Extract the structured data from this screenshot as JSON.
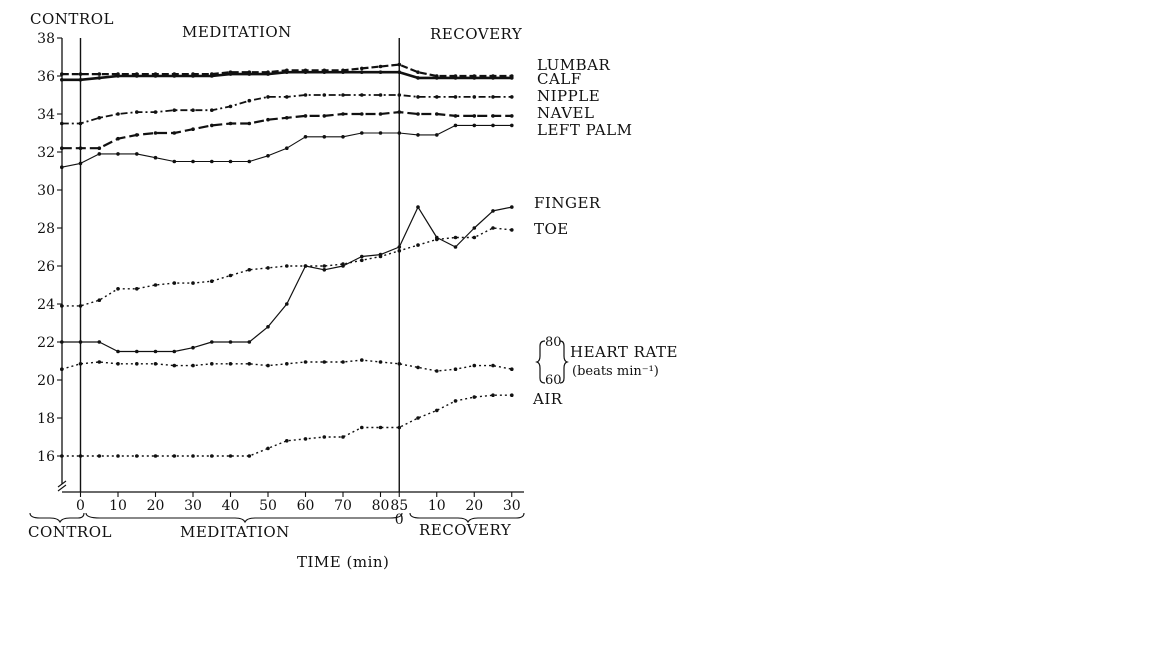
{
  "chart_data": {
    "type": "line",
    "phase_labels_top": [
      "CONTROL",
      "MEDITATION",
      "RECOVERY"
    ],
    "phase_labels_bottom": [
      "CONTROL",
      "MEDITATION",
      "RECOVERY"
    ],
    "xlabel": "TIME (min)",
    "x_tick_labels": [
      "0",
      "10",
      "20",
      "30",
      "40",
      "50",
      "60",
      "70",
      "80",
      "85",
      "10",
      "20",
      "30"
    ],
    "recovery_zero_label": "0",
    "y_ticks": [
      16,
      18,
      20,
      22,
      24,
      26,
      28,
      30,
      32,
      34,
      36,
      38
    ],
    "ylim": [
      15,
      38
    ],
    "x_axis_note": "time axis: control phase, meditation 0–85 min, recovery 0–30 min (recovery minutes continue after 85)",
    "heart_rate_scale": {
      "top": "80",
      "bottom": "60"
    },
    "series": [
      {
        "name": "LUMBAR",
        "style": "dashed",
        "x": [
          -5,
          0,
          5,
          10,
          15,
          20,
          25,
          30,
          35,
          40,
          45,
          50,
          55,
          60,
          65,
          70,
          75,
          80,
          85,
          90,
          95,
          100,
          105,
          110,
          115
        ],
        "values": [
          36.1,
          36.1,
          36.1,
          36.1,
          36.1,
          36.1,
          36.1,
          36.1,
          36.1,
          36.2,
          36.2,
          36.2,
          36.3,
          36.3,
          36.3,
          36.3,
          36.4,
          36.5,
          36.6,
          36.2,
          36.0,
          36.0,
          36.0,
          36.0,
          36.0
        ]
      },
      {
        "name": "CALF",
        "style": "solid-thick",
        "x": [
          -5,
          0,
          5,
          10,
          15,
          20,
          25,
          30,
          35,
          40,
          45,
          50,
          55,
          60,
          65,
          70,
          75,
          80,
          85,
          90,
          95,
          100,
          105,
          110,
          115
        ],
        "values": [
          35.8,
          35.8,
          35.9,
          36.0,
          36.0,
          36.0,
          36.0,
          36.0,
          36.0,
          36.1,
          36.1,
          36.1,
          36.2,
          36.2,
          36.2,
          36.2,
          36.2,
          36.2,
          36.2,
          35.9,
          35.9,
          35.9,
          35.9,
          35.9,
          35.9
        ]
      },
      {
        "name": "NIPPLE",
        "style": "dash-dot",
        "x": [
          -5,
          0,
          5,
          10,
          15,
          20,
          25,
          30,
          35,
          40,
          45,
          50,
          55,
          60,
          65,
          70,
          75,
          80,
          85,
          90,
          95,
          100,
          105,
          110,
          115
        ],
        "values": [
          33.5,
          33.5,
          33.8,
          34.0,
          34.1,
          34.1,
          34.2,
          34.2,
          34.2,
          34.4,
          34.7,
          34.9,
          34.9,
          35.0,
          35.0,
          35.0,
          35.0,
          35.0,
          35.0,
          34.9,
          34.9,
          34.9,
          34.9,
          34.9,
          34.9
        ]
      },
      {
        "name": "NAVEL",
        "style": "long-dash",
        "x": [
          -5,
          0,
          5,
          10,
          15,
          20,
          25,
          30,
          35,
          40,
          45,
          50,
          55,
          60,
          65,
          70,
          75,
          80,
          85,
          90,
          95,
          100,
          105,
          110,
          115
        ],
        "values": [
          32.2,
          32.2,
          32.2,
          32.7,
          32.9,
          33.0,
          33.0,
          33.2,
          33.4,
          33.5,
          33.5,
          33.7,
          33.8,
          33.9,
          33.9,
          34.0,
          34.0,
          34.0,
          34.1,
          34.0,
          34.0,
          33.9,
          33.9,
          33.9,
          33.9
        ]
      },
      {
        "name": "LEFT PALM",
        "style": "thin",
        "x": [
          -5,
          0,
          5,
          10,
          15,
          20,
          25,
          30,
          35,
          40,
          45,
          50,
          55,
          60,
          65,
          70,
          75,
          80,
          85,
          90,
          95,
          100,
          105,
          110,
          115
        ],
        "values": [
          31.2,
          31.4,
          31.9,
          31.9,
          31.9,
          31.7,
          31.5,
          31.5,
          31.5,
          31.5,
          31.5,
          31.8,
          32.2,
          32.8,
          32.8,
          32.8,
          33.0,
          33.0,
          33.0,
          32.9,
          32.9,
          33.4,
          33.4,
          33.4,
          33.4
        ]
      },
      {
        "name": "FINGER",
        "style": "solid",
        "x": [
          -5,
          0,
          5,
          10,
          15,
          20,
          25,
          30,
          35,
          40,
          45,
          50,
          55,
          60,
          65,
          70,
          75,
          80,
          85,
          90,
          95,
          100,
          105,
          110,
          115
        ],
        "values": [
          22.0,
          22.0,
          22.0,
          21.5,
          21.5,
          21.5,
          21.5,
          21.7,
          22.0,
          22.0,
          22.0,
          22.8,
          24.0,
          26.0,
          25.8,
          26.0,
          26.5,
          26.6,
          27.0,
          29.1,
          27.5,
          27.0,
          28.0,
          28.9,
          29.1
        ]
      },
      {
        "name": "TOE",
        "style": "dotted",
        "x": [
          -5,
          0,
          5,
          10,
          15,
          20,
          25,
          30,
          35,
          40,
          45,
          50,
          55,
          60,
          65,
          70,
          75,
          80,
          85,
          90,
          95,
          100,
          105,
          110,
          115
        ],
        "values": [
          23.9,
          23.9,
          24.2,
          24.8,
          24.8,
          25.0,
          25.1,
          25.1,
          25.2,
          25.5,
          25.8,
          25.9,
          26.0,
          26.0,
          26.0,
          26.1,
          26.3,
          26.5,
          26.8,
          27.1,
          27.4,
          27.5,
          27.5,
          28.0,
          27.9
        ]
      },
      {
        "name": "HEART RATE",
        "unit": "(beats min⁻¹)",
        "style": "dotted",
        "x": [
          -5,
          0,
          5,
          10,
          15,
          20,
          25,
          30,
          35,
          40,
          45,
          50,
          55,
          60,
          65,
          70,
          75,
          80,
          85,
          90,
          95,
          100,
          105,
          110,
          115
        ],
        "values": [
          66,
          69,
          70,
          69,
          69,
          69,
          68,
          68,
          69,
          69,
          69,
          68,
          69,
          70,
          70,
          70,
          71,
          70,
          69,
          67,
          65,
          66,
          68,
          68,
          66
        ]
      },
      {
        "name": "AIR",
        "style": "dotted",
        "x": [
          -5,
          0,
          5,
          10,
          15,
          20,
          25,
          30,
          35,
          40,
          45,
          50,
          55,
          60,
          65,
          70,
          75,
          80,
          85,
          90,
          95,
          100,
          105,
          110,
          115
        ],
        "values": [
          16.0,
          16.0,
          16.0,
          16.0,
          16.0,
          16.0,
          16.0,
          16.0,
          16.0,
          16.0,
          16.0,
          16.4,
          16.8,
          16.9,
          17.0,
          17.0,
          17.5,
          17.5,
          17.5,
          18.0,
          18.4,
          18.9,
          19.1,
          19.2,
          19.2
        ]
      }
    ]
  }
}
